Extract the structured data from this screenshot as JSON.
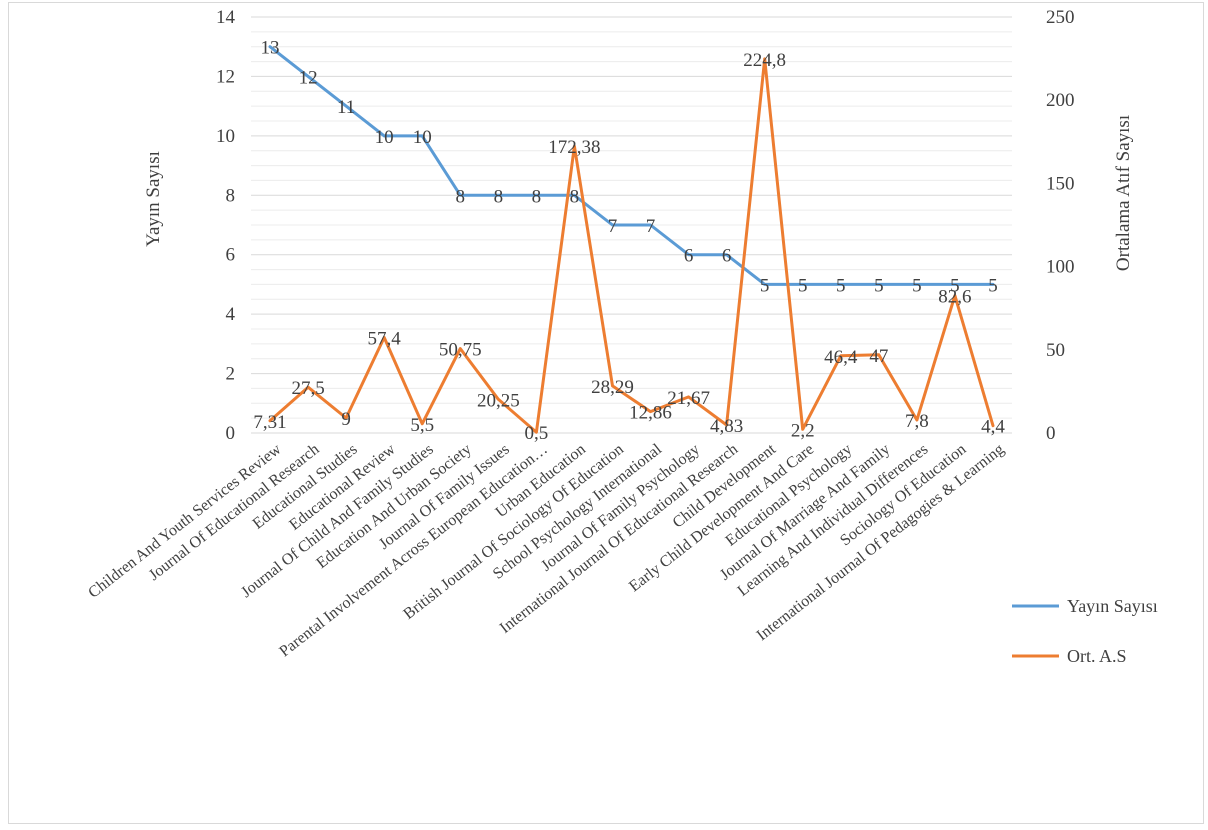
{
  "chart_data": {
    "type": "line",
    "categories": [
      "Children And Youth Services Review",
      "Journal Of Educational Research",
      "Educational Studies",
      "Educational Review",
      "Journal Of Child And Family Studies",
      "Education And Urban Society",
      "Journal Of Family Issues",
      "Parental Involvement Across European Education…",
      "Urban Education",
      "British Journal Of Sociology Of Education",
      "School Psychology International",
      "Journal Of Family Psychology",
      "International Journal Of Educational Research",
      "Child Development",
      "Early Child Development And Care",
      "Educational Psychology",
      "Journal Of Marriage And Family",
      "Learning And Individual Differences",
      "Sociology Of Education",
      "International Journal Of Pedagogies & Learning"
    ],
    "series": [
      {
        "name": "Yayın Sayısı",
        "axis": "left",
        "color": "#5B9BD5",
        "values": [
          13,
          12,
          11,
          10,
          10,
          8,
          8,
          8,
          8,
          7,
          7,
          6,
          6,
          5,
          5,
          5,
          5,
          5,
          5,
          5
        ],
        "labels": [
          "13",
          "12",
          "11",
          "10",
          "10",
          "8",
          "8",
          "8",
          "8",
          "7",
          "7",
          "6",
          "6",
          "5",
          "5",
          "5",
          "5",
          "5",
          "5",
          "5"
        ]
      },
      {
        "name": "Ort. A.S",
        "axis": "right",
        "color": "#ED7D31",
        "values": [
          7.31,
          27.5,
          9,
          57.4,
          5.5,
          50.75,
          20.25,
          0.5,
          172.38,
          28.29,
          12.86,
          21.67,
          4.83,
          224.8,
          2.2,
          46.4,
          47,
          7.8,
          82.6,
          4.4
        ],
        "labels": [
          "7,31",
          "27,5",
          "9",
          "57,4",
          "5,5",
          "50,75",
          "20,25",
          "0,5",
          "172,38",
          "28,29",
          "12,86",
          "21,67",
          "4,83",
          "224,8",
          "2,2",
          "46,4",
          "47",
          "7,8",
          "82,6",
          "4,4"
        ]
      }
    ],
    "y_left": {
      "label": "Yayın Sayısı",
      "ylim": [
        0,
        14
      ],
      "ticks": [
        "0",
        "2",
        "4",
        "6",
        "8",
        "10",
        "12",
        "14"
      ]
    },
    "y_right": {
      "label": "Ortalama Atıf Sayısı",
      "ylim": [
        0,
        250
      ],
      "ticks": [
        "0",
        "50",
        "100",
        "150",
        "200",
        "250"
      ]
    },
    "grid": true,
    "legend_position": "right"
  }
}
